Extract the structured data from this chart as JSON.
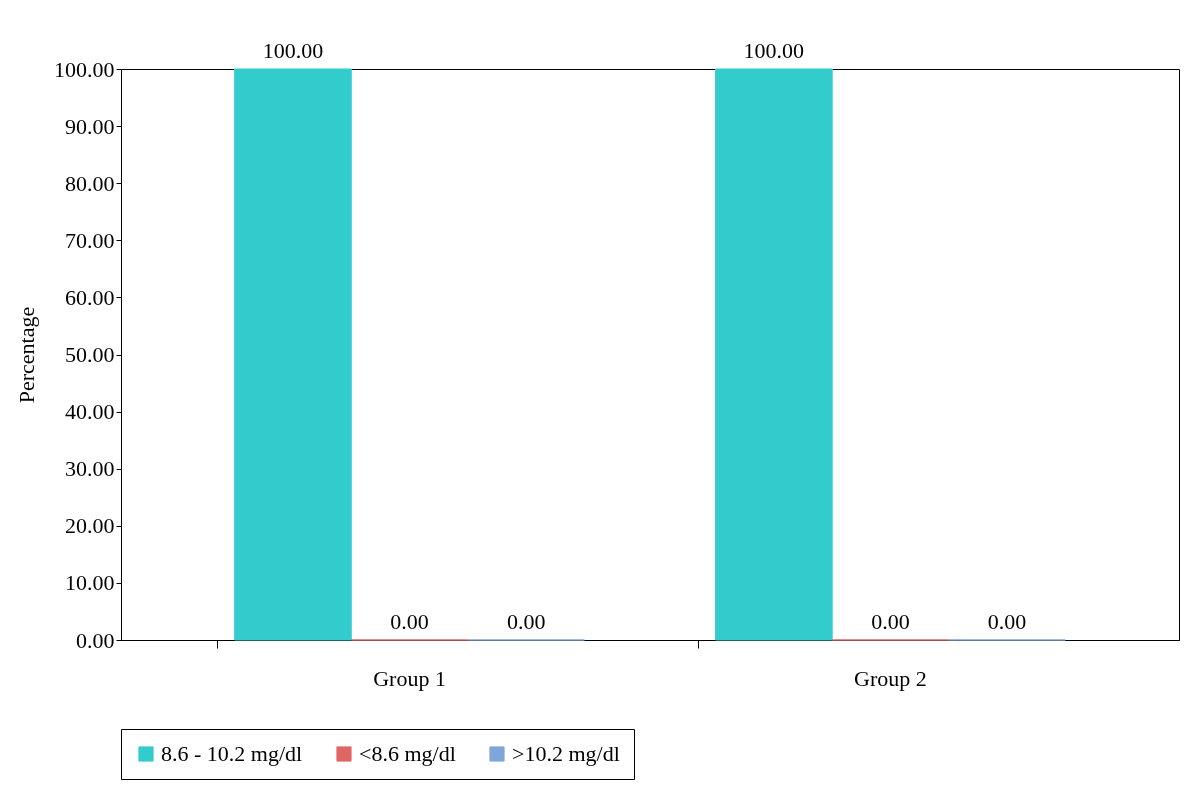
{
  "chart_data": {
    "type": "bar",
    "ylabel": "Percentage",
    "categories": [
      "Group 1",
      "Group 2"
    ],
    "series": [
      {
        "name": "8.6 - 10.2 mg/dl",
        "color": "#33cccc",
        "values": [
          100,
          100
        ],
        "value_labels": [
          "100.00",
          "100.00"
        ]
      },
      {
        "name": "<8.6 mg/dl",
        "color": "#e06666",
        "values": [
          0,
          0
        ],
        "value_labels": [
          "0.00",
          "0.00"
        ]
      },
      {
        "name": ">10.2 mg/dl",
        "color": "#7fa6d8",
        "values": [
          0,
          0
        ],
        "value_labels": [
          "0.00",
          "0.00"
        ]
      }
    ],
    "ylim": [
      0,
      100
    ],
    "yticks": [
      {
        "value": 0,
        "label": "0.00"
      },
      {
        "value": 10,
        "label": "10.00"
      },
      {
        "value": 20,
        "label": "20.00"
      },
      {
        "value": 30,
        "label": "30.00"
      },
      {
        "value": 40,
        "label": "40.00"
      },
      {
        "value": 50,
        "label": "50.00"
      },
      {
        "value": 60,
        "label": "60.00"
      },
      {
        "value": 70,
        "label": "70.00"
      },
      {
        "value": 80,
        "label": "80.00"
      },
      {
        "value": 90,
        "label": "90.00"
      },
      {
        "value": 100,
        "label": "100.00"
      }
    ],
    "grid": false,
    "legend": "bottom"
  }
}
